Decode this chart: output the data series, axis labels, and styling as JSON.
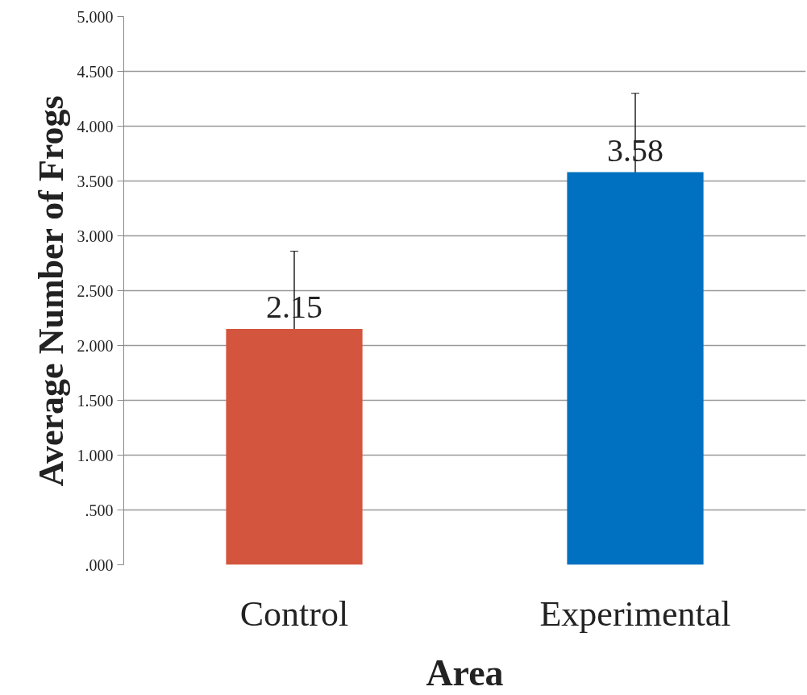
{
  "chart_data": {
    "type": "bar",
    "xlabel": "Area",
    "ylabel": "Average Number of Frogs",
    "categories": [
      "Control",
      "Experimental"
    ],
    "values": [
      2.15,
      3.58
    ],
    "colors": [
      "#d3553d",
      "#0070c0"
    ],
    "errors": [
      0.71,
      0.72
    ],
    "data_labels": true,
    "ylim": [
      0,
      5
    ],
    "yticks": [
      {
        "value": 0,
        "label": ".000"
      },
      {
        "value": 0.5,
        "label": ".500"
      },
      {
        "value": 1,
        "label": "1.000"
      },
      {
        "value": 1.5,
        "label": "1.500"
      },
      {
        "value": 2,
        "label": "2.000"
      },
      {
        "value": 2.5,
        "label": "2.500"
      },
      {
        "value": 3,
        "label": "3.000"
      },
      {
        "value": 3.5,
        "label": "3.500"
      },
      {
        "value": 4,
        "label": "4.000"
      },
      {
        "value": 4.5,
        "label": "4.500"
      },
      {
        "value": 5,
        "label": "5.000"
      }
    ],
    "grid": "y"
  }
}
